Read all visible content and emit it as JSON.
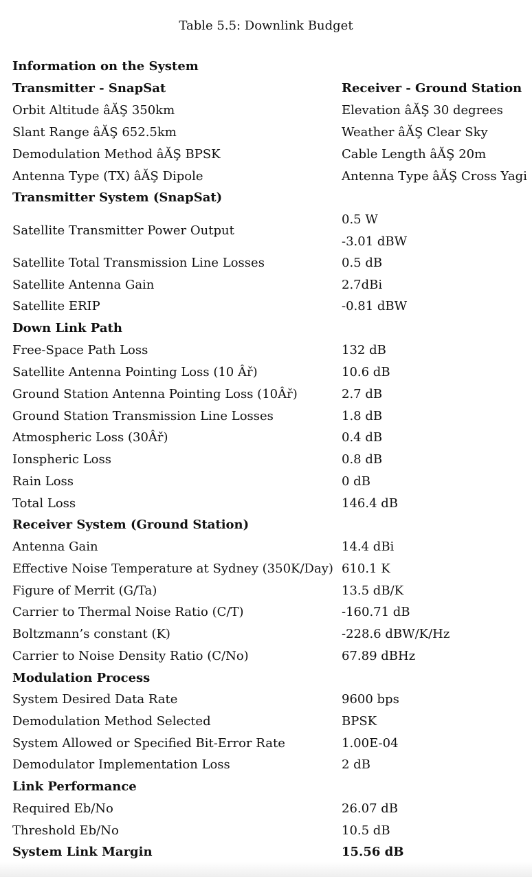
{
  "caption": "Table 5.5: Downlink Budget",
  "system_info": {
    "heading": "Information on the System",
    "tx_heading": "Transmitter - SnapSat",
    "rx_heading": "Receiver - Ground Station",
    "rows": [
      {
        "left": "Orbit Altitude âĂŞ 350km",
        "right": "Elevation âĂŞ 30 degrees"
      },
      {
        "left": "Slant Range âĂŞ 652.5km",
        "right": "Weather âĂŞ Clear Sky"
      },
      {
        "left": "Demodulation Method âĂŞ BPSK",
        "right": "Cable Length âĂŞ 20m"
      },
      {
        "left": "Antenna Type (TX) âĂŞ Dipole",
        "right": "Antenna Type âĂŞ Cross Yagi"
      }
    ]
  },
  "transmitter": {
    "heading": "Transmitter System (SnapSat)",
    "power_label": "Satellite Transmitter Power Output",
    "power_w": "0.5 W",
    "power_dbw": "-3.01 dBW",
    "rows": [
      {
        "label": "Satellite Total Transmission Line Losses",
        "value": "0.5 dB"
      },
      {
        "label": "Satellite Antenna Gain",
        "value": "2.7dBi"
      },
      {
        "label": "Satellite ERIP",
        "value": "-0.81 dBW"
      }
    ]
  },
  "downlink": {
    "heading": "Down Link Path",
    "rows": [
      {
        "label": "Free-Space Path Loss",
        "value": "132 dB"
      },
      {
        "label": "Satellite Antenna Pointing Loss (10 Âř)",
        "value": "10.6 dB"
      },
      {
        "label": "Ground Station Antenna Pointing Loss (10Âř)",
        "value": "2.7 dB"
      },
      {
        "label": "Ground Station Transmission Line Losses",
        "value": "1.8 dB"
      },
      {
        "label": "Atmospheric Loss (30Âř)",
        "value": "0.4 dB"
      },
      {
        "label": "Ionspheric Loss",
        "value": "0.8 dB"
      },
      {
        "label": "Rain Loss",
        "value": "0 dB"
      },
      {
        "label": "Total Loss",
        "value": "146.4 dB"
      }
    ]
  },
  "receiver": {
    "heading": "Receiver System (Ground Station)",
    "rows": [
      {
        "label": "Antenna Gain",
        "value": "14.4 dBi"
      },
      {
        "label": "Effective Noise Temperature at Sydney (350K/Day)",
        "value": "610.1 K"
      },
      {
        "label": "Figure of Merrit (G/Ta)",
        "value": "13.5 dB/K"
      },
      {
        "label": "Carrier to Thermal Noise Ratio (C/T)",
        "value": "-160.71 dB"
      },
      {
        "label": "Boltzmann’s constant (K)",
        "value": "-228.6 dBW/K/Hz"
      },
      {
        "label": "Carrier to Noise Density Ratio (C/No)",
        "value": "67.89 dBHz"
      }
    ]
  },
  "modulation": {
    "heading": "Modulation Process",
    "rows": [
      {
        "label": "System Desired Data Rate",
        "value": "9600 bps"
      },
      {
        "label": "Demodulation Method Selected",
        "value": "BPSK"
      },
      {
        "label": "System Allowed or Specified Bit-Error Rate",
        "value": "1.00E-04"
      },
      {
        "label": "Demodulator Implementation Loss",
        "value": "2 dB"
      }
    ]
  },
  "performance": {
    "heading": "Link Performance",
    "rows": [
      {
        "label": "Required Eb/No",
        "value": "26.07 dB"
      },
      {
        "label": "Threshold Eb/No",
        "value": "10.5 dB"
      }
    ],
    "margin_label": "System Link Margin",
    "margin_value": "15.56 dB"
  }
}
